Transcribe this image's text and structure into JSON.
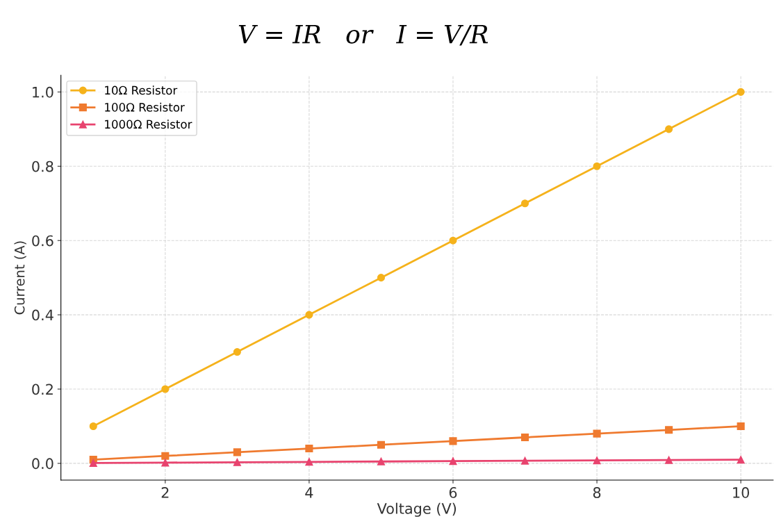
{
  "chart_data": {
    "type": "line",
    "title": "V = IR   or   I = V/R",
    "xlabel": "Voltage (V)",
    "ylabel": "Current (A)",
    "x": [
      1,
      2,
      3,
      4,
      5,
      6,
      7,
      8,
      9,
      10
    ],
    "series": [
      {
        "name": "10Ω Resistor",
        "color": "#f5b21b",
        "marker": "circle",
        "values": [
          0.1,
          0.2,
          0.3,
          0.4,
          0.5,
          0.6,
          0.7,
          0.8,
          0.9,
          1.0
        ]
      },
      {
        "name": "100Ω Resistor",
        "color": "#ef7a2f",
        "marker": "square",
        "values": [
          0.01,
          0.02,
          0.03,
          0.04,
          0.05,
          0.06,
          0.07,
          0.08,
          0.09,
          0.1
        ]
      },
      {
        "name": "1000Ω Resistor",
        "color": "#e8436e",
        "marker": "triangle",
        "values": [
          0.001,
          0.002,
          0.003,
          0.004,
          0.005,
          0.006,
          0.007,
          0.008,
          0.009,
          0.01
        ]
      }
    ],
    "xlim": [
      0.55,
      10.45
    ],
    "xticks": [
      2,
      4,
      6,
      8,
      10
    ],
    "ylim": [
      -0.045,
      1.045
    ],
    "yticks": [
      {
        "value": 0,
        "label": "0.0"
      },
      0.2,
      0.4,
      0.6,
      0.8,
      {
        "value": 1,
        "label": "1.0"
      }
    ],
    "grid": true,
    "legend": "top left",
    "line_style": "solid"
  }
}
